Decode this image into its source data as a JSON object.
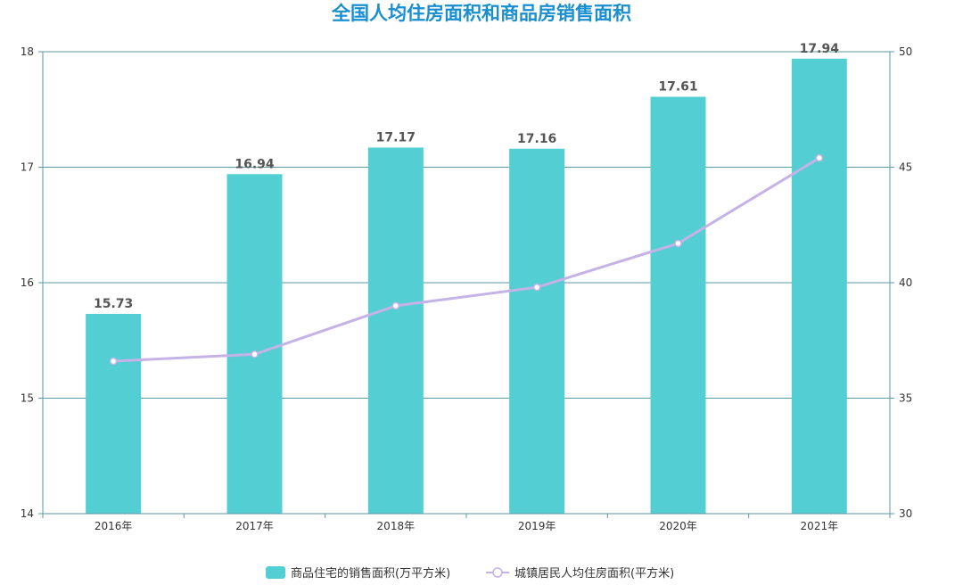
{
  "chart_data": {
    "type": "bar",
    "title": "全国人均住房面积和商品房销售面积",
    "categories": [
      "2016年",
      "2017年",
      "2018年",
      "2019年",
      "2020年",
      "2021年"
    ],
    "series": [
      {
        "name": "商品住宅的销售面积(万平方米)",
        "type": "bar",
        "axis": "left",
        "color": "#53cfd4",
        "values": [
          15.73,
          16.94,
          17.17,
          17.16,
          17.61,
          17.94
        ],
        "data_labels": [
          "15.73",
          "16.94",
          "17.17",
          "17.16",
          "17.61",
          "17.94"
        ]
      },
      {
        "name": "城镇居民人均住房面积(平方米)",
        "type": "line",
        "axis": "right",
        "color": "#c5b2e6",
        "values": [
          36.6,
          36.9,
          39.0,
          39.8,
          41.7,
          45.4
        ]
      }
    ],
    "y_left": {
      "min": 14,
      "max": 18,
      "ticks": [
        "14",
        "15",
        "16",
        "17",
        "18"
      ]
    },
    "y_right": {
      "min": 30,
      "max": 50,
      "ticks": [
        "30",
        "35",
        "40",
        "45",
        "50"
      ]
    },
    "grid": true,
    "legend_position": "bottom-center"
  }
}
